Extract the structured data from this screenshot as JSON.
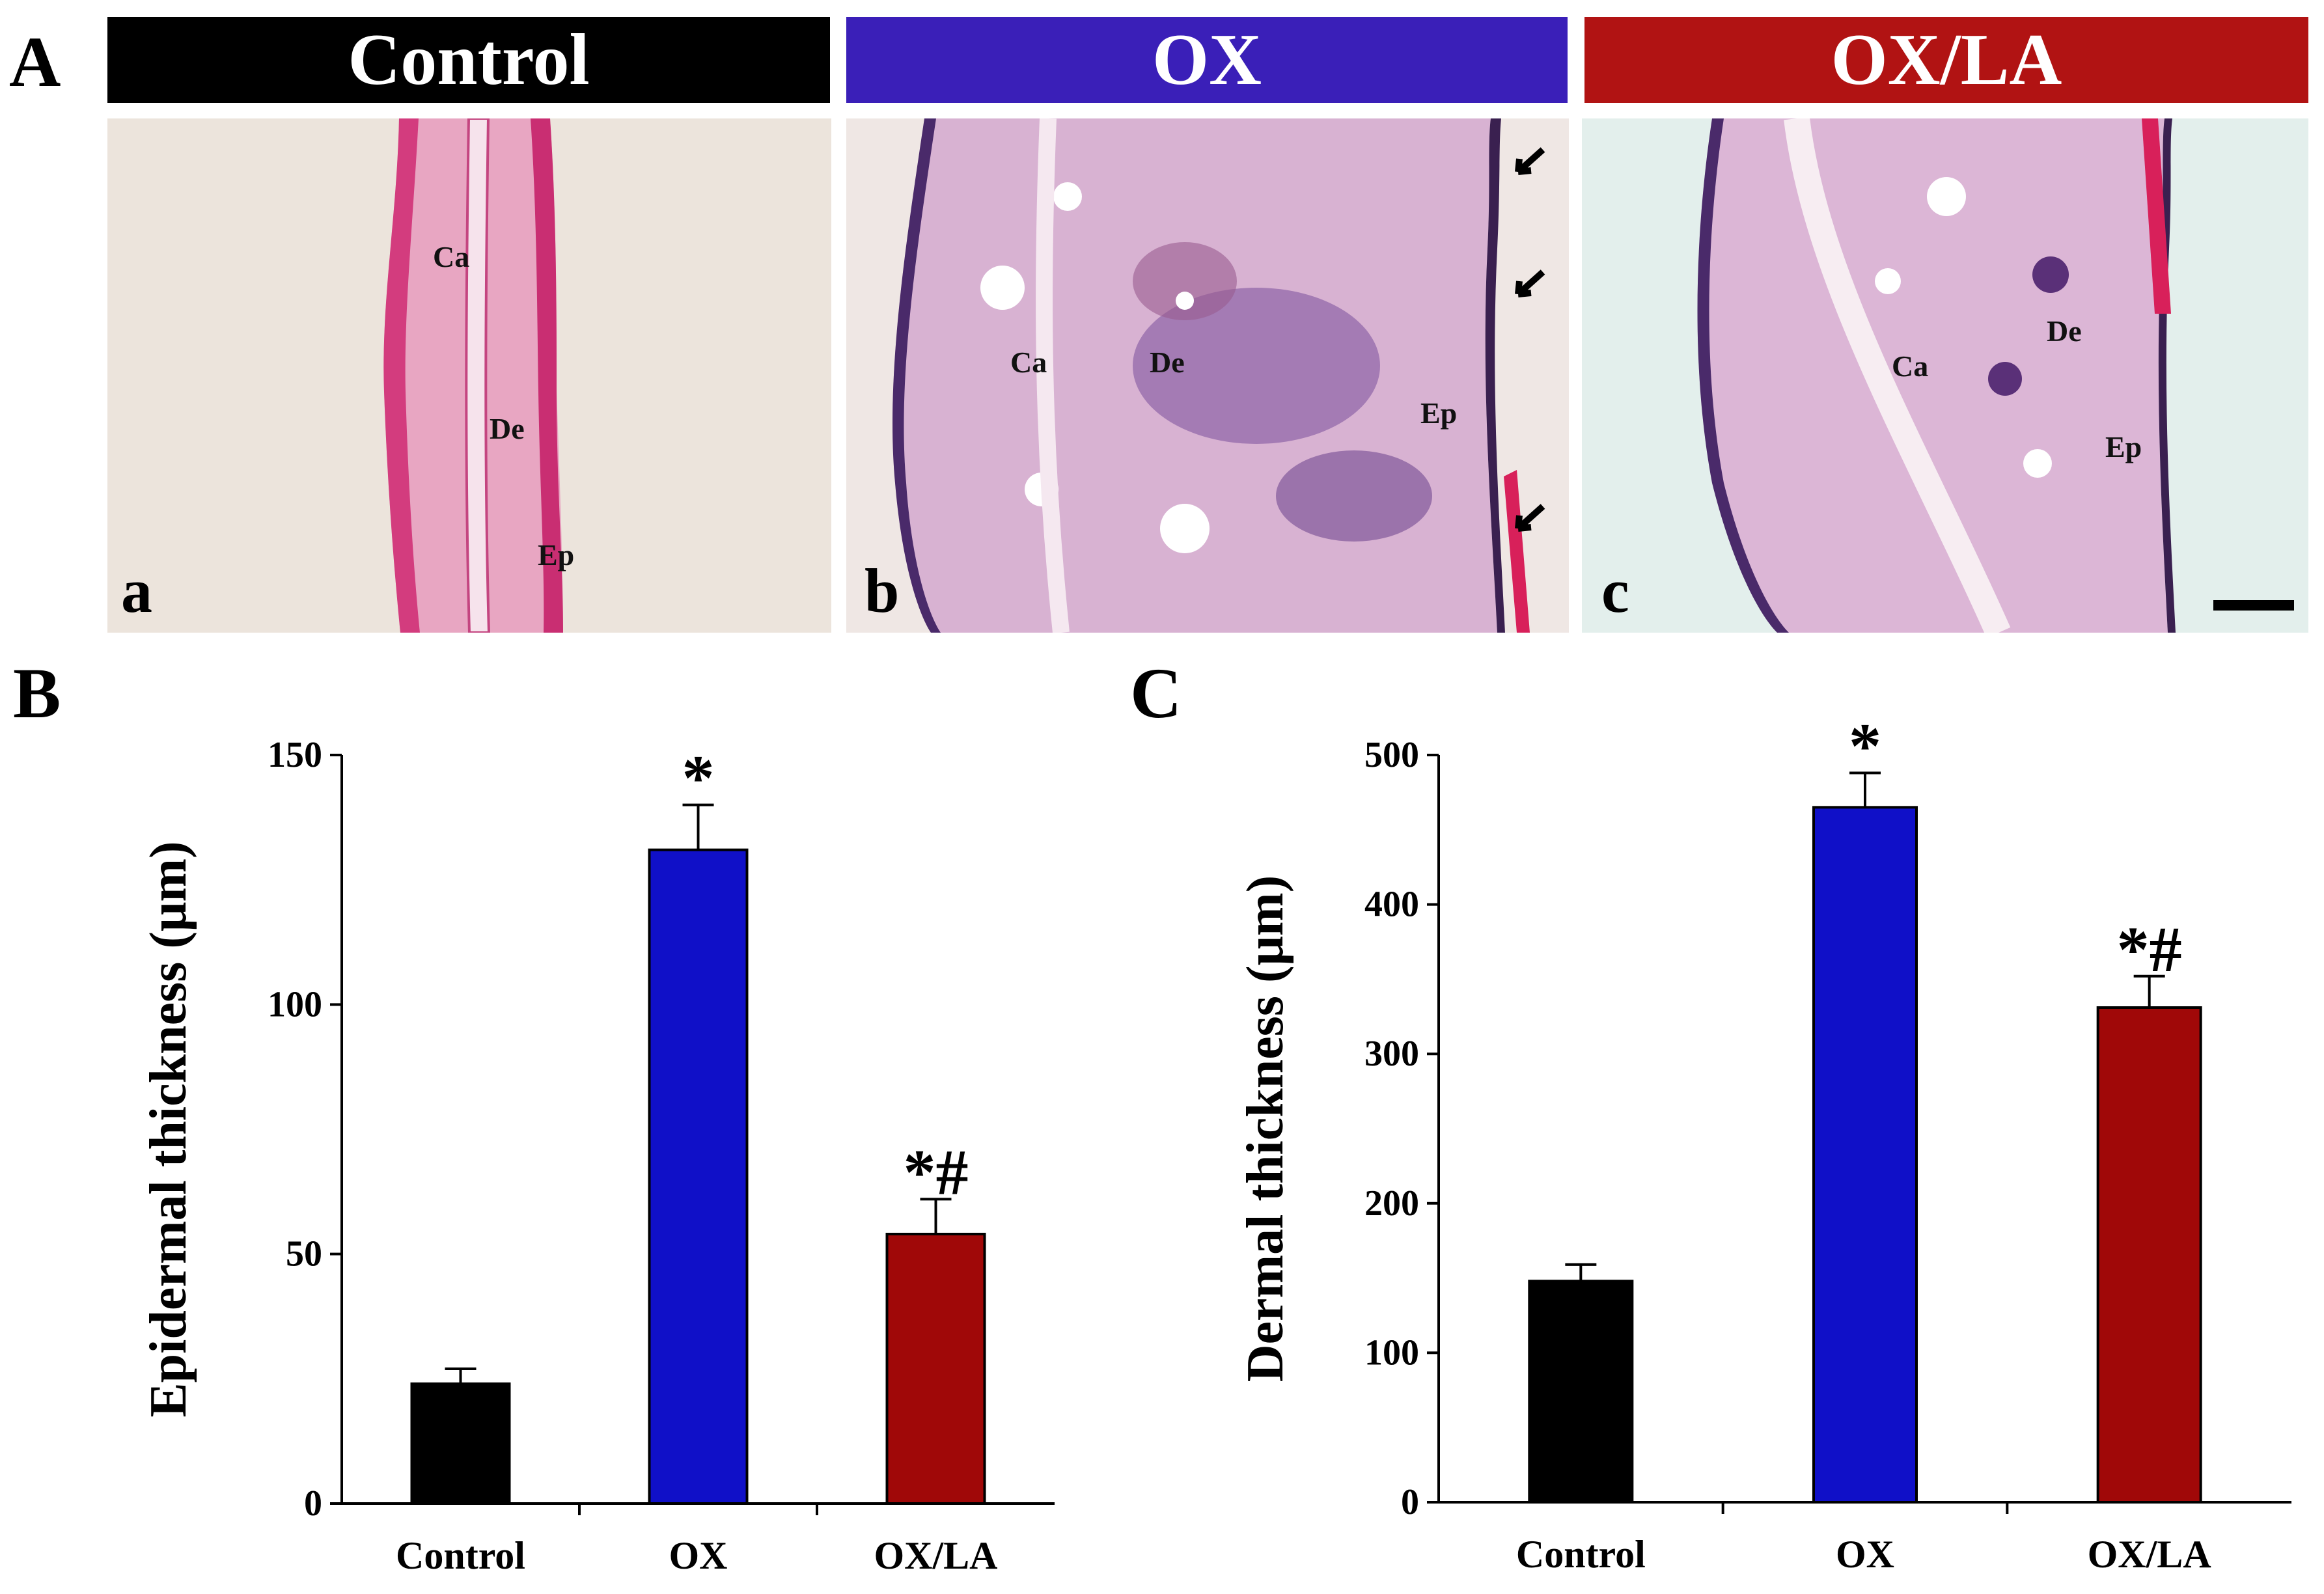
{
  "panel_A": {
    "letter": "A",
    "groups": [
      {
        "label": "Control",
        "color": "#000000"
      },
      {
        "label": "OX",
        "color": "#3a1fb8"
      },
      {
        "label": "OX/LA",
        "color": "#b11313"
      }
    ],
    "images": [
      {
        "sublabel": "a",
        "tissue_labels": [
          "Ca",
          "De",
          "Ep"
        ]
      },
      {
        "sublabel": "b",
        "tissue_labels": [
          "Ca",
          "De",
          "Ep"
        ]
      },
      {
        "sublabel": "c",
        "tissue_labels": [
          "Ca",
          "De",
          "Ep"
        ]
      }
    ]
  },
  "chart_data": [
    {
      "panel_letter": "B",
      "type": "bar",
      "categories": [
        "Control",
        "OX",
        "OX/LA"
      ],
      "values": [
        24,
        131,
        54
      ],
      "errors": [
        3,
        9,
        7
      ],
      "colors": [
        "#000000",
        "#1010c8",
        "#a00808"
      ],
      "annotations": [
        "",
        "*",
        "*#"
      ],
      "ylabel": "Epidermal thickness (μm)",
      "ylim": [
        0,
        150
      ],
      "yticks": [
        0,
        50,
        100,
        150
      ],
      "grid": false
    },
    {
      "panel_letter": "C",
      "type": "bar",
      "categories": [
        "Control",
        "OX",
        "OX/LA"
      ],
      "values": [
        148,
        465,
        331
      ],
      "errors": [
        11,
        23,
        21
      ],
      "colors": [
        "#000000",
        "#1010c8",
        "#a00808"
      ],
      "annotations": [
        "",
        "*",
        "*#"
      ],
      "ylabel": "Dermal thickness (μm)",
      "ylim": [
        0,
        500
      ],
      "yticks": [
        0,
        100,
        200,
        300,
        400,
        500
      ],
      "grid": false
    }
  ]
}
